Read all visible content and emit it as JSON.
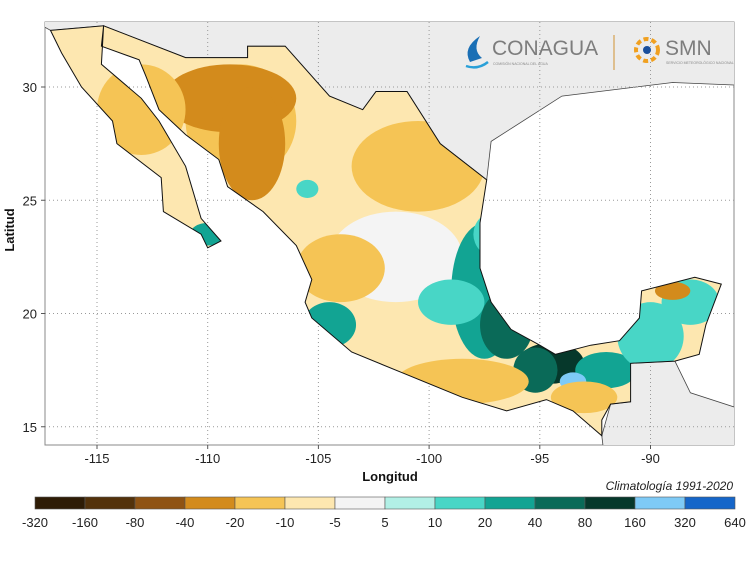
{
  "map": {
    "xlabel": "Longitud",
    "ylabel": "Latitud",
    "x_ticks": [
      -115,
      -110,
      -105,
      -100,
      -95,
      -90
    ],
    "y_ticks": [
      30,
      25,
      20,
      15
    ],
    "lon_range": [
      -117.3,
      -86.2
    ],
    "lat_range": [
      14.0,
      32.8
    ],
    "grid": true,
    "note": "Climatología 1991-2020"
  },
  "logos": {
    "conagua": "CONAGUA",
    "conagua_sub": "COMISIÓN NACIONAL DEL AGUA",
    "smn": "SMN",
    "smn_sub": "SERVICIO METEOROLÓGICO NACIONAL"
  },
  "legend": {
    "breaks": [
      "-320",
      "-160",
      "-80",
      "-40",
      "-20",
      "-10",
      "-5",
      "5",
      "10",
      "20",
      "40",
      "80",
      "160",
      "320",
      "640"
    ],
    "colors": [
      "#2e1c06",
      "#53320b",
      "#8f5313",
      "#d38b1c",
      "#f5c455",
      "#fde7b0",
      "#f4f4f4",
      "#b2f0e6",
      "#48d6c6",
      "#12a493",
      "#0a6a58",
      "#06382b",
      "#7ecaf6",
      "#1566c9"
    ]
  }
}
